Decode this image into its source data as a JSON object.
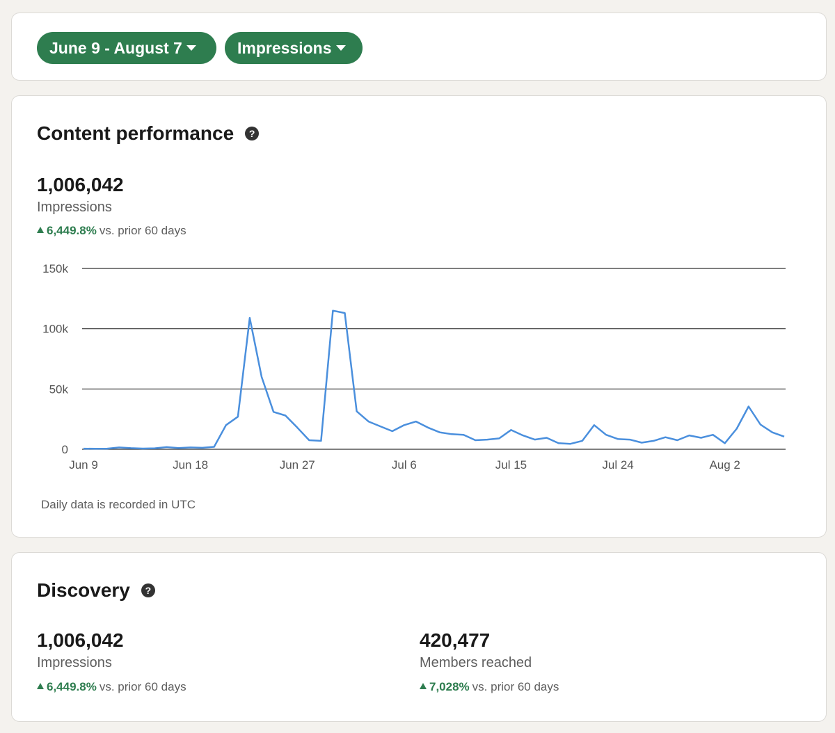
{
  "colors": {
    "accent": "#2e7d4f",
    "line": "#4a8fdd",
    "pill": "#2e7d4f"
  },
  "filters": {
    "date_range": "June 9 - August 7",
    "metric": "Impressions"
  },
  "content_performance": {
    "title": "Content performance",
    "help_icon": "?",
    "total": "1,006,042",
    "total_label": "Impressions",
    "change_pct": "6,449.8%",
    "change_suffix": "vs. prior 60 days",
    "note": "Daily data is recorded in UTC"
  },
  "chart_data": {
    "type": "line",
    "title": "Content performance",
    "ylabel": "Impressions",
    "ylim": [
      0,
      150000
    ],
    "yticks": [
      0,
      50000,
      100000,
      150000
    ],
    "ytick_labels": [
      "0",
      "50k",
      "100k",
      "150k"
    ],
    "xticks": [
      0,
      9,
      18,
      27,
      36,
      45,
      54
    ],
    "xtick_labels": [
      "Jun 9",
      "Jun 18",
      "Jun 27",
      "Jul 6",
      "Jul 15",
      "Jul 24",
      "Aug 2"
    ],
    "series": [
      {
        "name": "Impressions",
        "values": [
          500,
          400,
          500,
          1500,
          900,
          600,
          800,
          1800,
          1000,
          1500,
          1200,
          2000,
          20000,
          27000,
          109000,
          60000,
          31000,
          28000,
          18000,
          7500,
          7000,
          115000,
          113000,
          31500,
          23000,
          19000,
          15000,
          20000,
          23000,
          18000,
          14000,
          12500,
          12000,
          7500,
          8000,
          9000,
          16000,
          11500,
          8000,
          9500,
          5000,
          4500,
          7000,
          20000,
          12000,
          8500,
          8000,
          5500,
          7000,
          10000,
          7500,
          11500,
          9500,
          12000,
          5000,
          17000,
          35500,
          20500,
          14000,
          10500
        ]
      }
    ]
  },
  "discovery": {
    "title": "Discovery",
    "help_icon": "?",
    "metrics": [
      {
        "value": "1,006,042",
        "label": "Impressions",
        "change_pct": "6,449.8%",
        "change_suffix": "vs. prior 60 days"
      },
      {
        "value": "420,477",
        "label": "Members reached",
        "change_pct": "7,028%",
        "change_suffix": "vs. prior 60 days"
      }
    ]
  }
}
